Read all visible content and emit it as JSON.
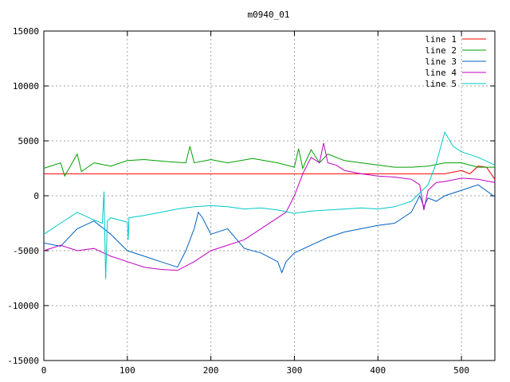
{
  "chart_data": {
    "type": "line",
    "title": "m0940_01",
    "xlabel": "",
    "ylabel": "",
    "xlim": [
      0,
      540
    ],
    "ylim": [
      -15000,
      15000
    ],
    "grid": true,
    "legend_position": "top-right",
    "x_ticks": [
      0,
      100,
      200,
      300,
      400,
      500
    ],
    "y_ticks": [
      -15000,
      -10000,
      -5000,
      0,
      5000,
      10000,
      15000
    ],
    "series": [
      {
        "name": "line 1",
        "color": "#ff0000",
        "x": [
          0,
          480,
          500,
          510,
          520,
          530,
          540
        ],
        "y": [
          2000,
          2000,
          2300,
          2000,
          2700,
          2600,
          1500
        ]
      },
      {
        "name": "line 2",
        "color": "#00a000",
        "x": [
          0,
          20,
          25,
          40,
          45,
          60,
          80,
          100,
          120,
          150,
          170,
          175,
          180,
          200,
          220,
          250,
          280,
          300,
          305,
          310,
          320,
          330,
          340,
          360,
          380,
          400,
          420,
          440,
          460,
          480,
          500,
          520,
          540
        ],
        "y": [
          2500,
          3000,
          1800,
          3800,
          2200,
          3000,
          2700,
          3200,
          3300,
          3100,
          3000,
          4500,
          3000,
          3300,
          3000,
          3400,
          3000,
          2600,
          4300,
          2500,
          4200,
          3000,
          3800,
          3200,
          3000,
          2800,
          2600,
          2600,
          2700,
          3000,
          3000,
          2600,
          2600
        ]
      },
      {
        "name": "line 3",
        "color": "#0060c0",
        "x": [
          0,
          20,
          40,
          60,
          80,
          100,
          120,
          140,
          160,
          170,
          180,
          185,
          190,
          200,
          220,
          240,
          260,
          280,
          285,
          290,
          300,
          320,
          340,
          360,
          380,
          400,
          420,
          440,
          450,
          455,
          460,
          470,
          480,
          500,
          520,
          540
        ],
        "y": [
          -4300,
          -4600,
          -3000,
          -2300,
          -3500,
          -5000,
          -5500,
          -6000,
          -6500,
          -5000,
          -3000,
          -1500,
          -2000,
          -3500,
          -3000,
          -4800,
          -5200,
          -6000,
          -7000,
          -6000,
          -5200,
          -4500,
          -3800,
          -3300,
          -3000,
          -2700,
          -2500,
          -1500,
          0,
          -1000,
          -200,
          -500,
          0,
          500,
          1000,
          -100
        ]
      },
      {
        "name": "line 4",
        "color": "#c000c0",
        "x": [
          0,
          20,
          40,
          60,
          80,
          100,
          120,
          140,
          160,
          180,
          200,
          220,
          240,
          260,
          280,
          290,
          300,
          310,
          320,
          330,
          335,
          340,
          350,
          360,
          380,
          400,
          420,
          440,
          450,
          455,
          460,
          470,
          480,
          500,
          520,
          540
        ],
        "y": [
          -5000,
          -4500,
          -5000,
          -4800,
          -5500,
          -6000,
          -6500,
          -6700,
          -6800,
          -6000,
          -5000,
          -4500,
          -4000,
          -3000,
          -2000,
          -1500,
          0,
          2000,
          3500,
          3000,
          4800,
          3000,
          2800,
          2300,
          2000,
          1800,
          1700,
          1500,
          1000,
          -1300,
          500,
          1200,
          1300,
          1600,
          1500,
          1200
        ]
      },
      {
        "name": "line 5",
        "color": "#00c8c8",
        "x": [
          0,
          20,
          40,
          60,
          70,
          72,
          74,
          76,
          80,
          100,
          101,
          102,
          120,
          140,
          160,
          180,
          200,
          220,
          240,
          260,
          280,
          300,
          320,
          340,
          360,
          380,
          400,
          420,
          440,
          460,
          470,
          480,
          490,
          500,
          520,
          540
        ],
        "y": [
          -3500,
          -2500,
          -1500,
          -2200,
          -2500,
          400,
          -7600,
          -2300,
          -2000,
          -2400,
          -4000,
          -2000,
          -1800,
          -1500,
          -1200,
          -1000,
          -900,
          -1000,
          -1200,
          -1100,
          -1300,
          -1600,
          -1400,
          -1300,
          -1200,
          -1100,
          -1200,
          -1000,
          -500,
          1000,
          3000,
          5800,
          4500,
          4000,
          3500,
          2800
        ]
      }
    ]
  }
}
